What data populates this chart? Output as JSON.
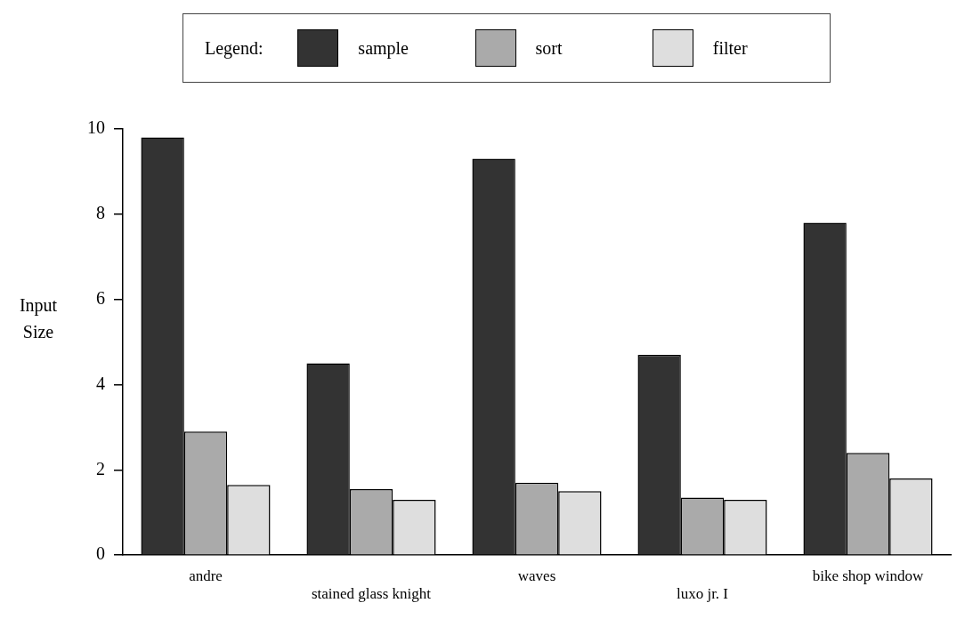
{
  "chart_data": {
    "type": "bar",
    "ylabel": "Input Size",
    "legend_title": "Legend:",
    "legend": "top",
    "categories": [
      "andre",
      "stained glass knight",
      "waves",
      "luxo jr. I",
      "bike shop window"
    ],
    "series": [
      {
        "name": "sample",
        "color": "#333333",
        "values": [
          9.8,
          4.5,
          9.3,
          4.7,
          7.8
        ]
      },
      {
        "name": "sort",
        "color": "#aaaaaa",
        "values": [
          2.9,
          1.55,
          1.7,
          1.35,
          2.4
        ]
      },
      {
        "name": "filter",
        "color": "#dedede",
        "values": [
          1.65,
          1.3,
          1.5,
          1.3,
          1.8
        ]
      }
    ],
    "ylim": [
      0,
      10
    ],
    "yticks": [
      0,
      2,
      4,
      6,
      8,
      10
    ],
    "grid": false
  }
}
